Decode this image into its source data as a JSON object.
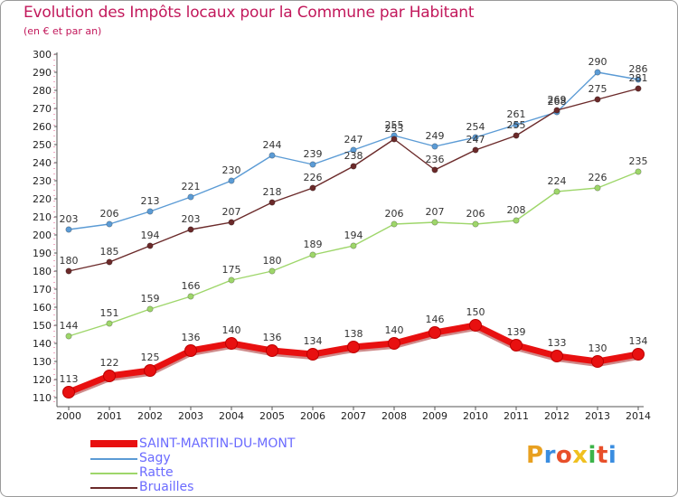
{
  "header": {
    "title": "Evolution des Impôts locaux pour la Commune par Habitant",
    "subtitle": "(en € et par an)"
  },
  "logo": {
    "text": "Proxiti",
    "colors": [
      "#e8a020",
      "#3a8de0",
      "#e84f2a",
      "#f0c020",
      "#3cb44a",
      "#e84f2a",
      "#3a8de0"
    ]
  },
  "chart_data": {
    "type": "line",
    "title": "Evolution des Impôts locaux pour la Commune par Habitant",
    "subtitle": "(en € et par an)",
    "x": [
      2000,
      2001,
      2002,
      2003,
      2004,
      2005,
      2006,
      2007,
      2008,
      2009,
      2010,
      2011,
      2012,
      2013,
      2014
    ],
    "xlabel": "",
    "ylabel": "",
    "ylim": [
      110,
      300
    ],
    "yticks": [
      110,
      120,
      130,
      140,
      150,
      160,
      170,
      180,
      190,
      200,
      210,
      220,
      230,
      240,
      250,
      260,
      270,
      280,
      290,
      300
    ],
    "grid": false,
    "legend_position": "bottom-left",
    "series": [
      {
        "name": "Sagy",
        "color": "#5b9bd5",
        "values": [
          203,
          206,
          213,
          221,
          230,
          244,
          239,
          247,
          255,
          249,
          254,
          261,
          268,
          290,
          286
        ]
      },
      {
        "name": "Bruailles",
        "color": "#6b2a2a",
        "values": [
          180,
          185,
          194,
          203,
          207,
          218,
          226,
          238,
          253,
          236,
          247,
          255,
          269,
          275,
          281
        ]
      },
      {
        "name": "Ratte",
        "color": "#9ed66a",
        "values": [
          144,
          151,
          159,
          166,
          175,
          180,
          189,
          194,
          206,
          207,
          206,
          208,
          224,
          226,
          235
        ]
      },
      {
        "name": "SAINT-MARTIN-DU-MONT",
        "color": "#e81010",
        "values": [
          113,
          122,
          125,
          136,
          140,
          136,
          134,
          138,
          140,
          146,
          150,
          139,
          133,
          130,
          134
        ]
      }
    ],
    "legend": [
      "SAINT-MARTIN-DU-MONT",
      "Sagy",
      "Ratte",
      "Bruailles"
    ]
  }
}
